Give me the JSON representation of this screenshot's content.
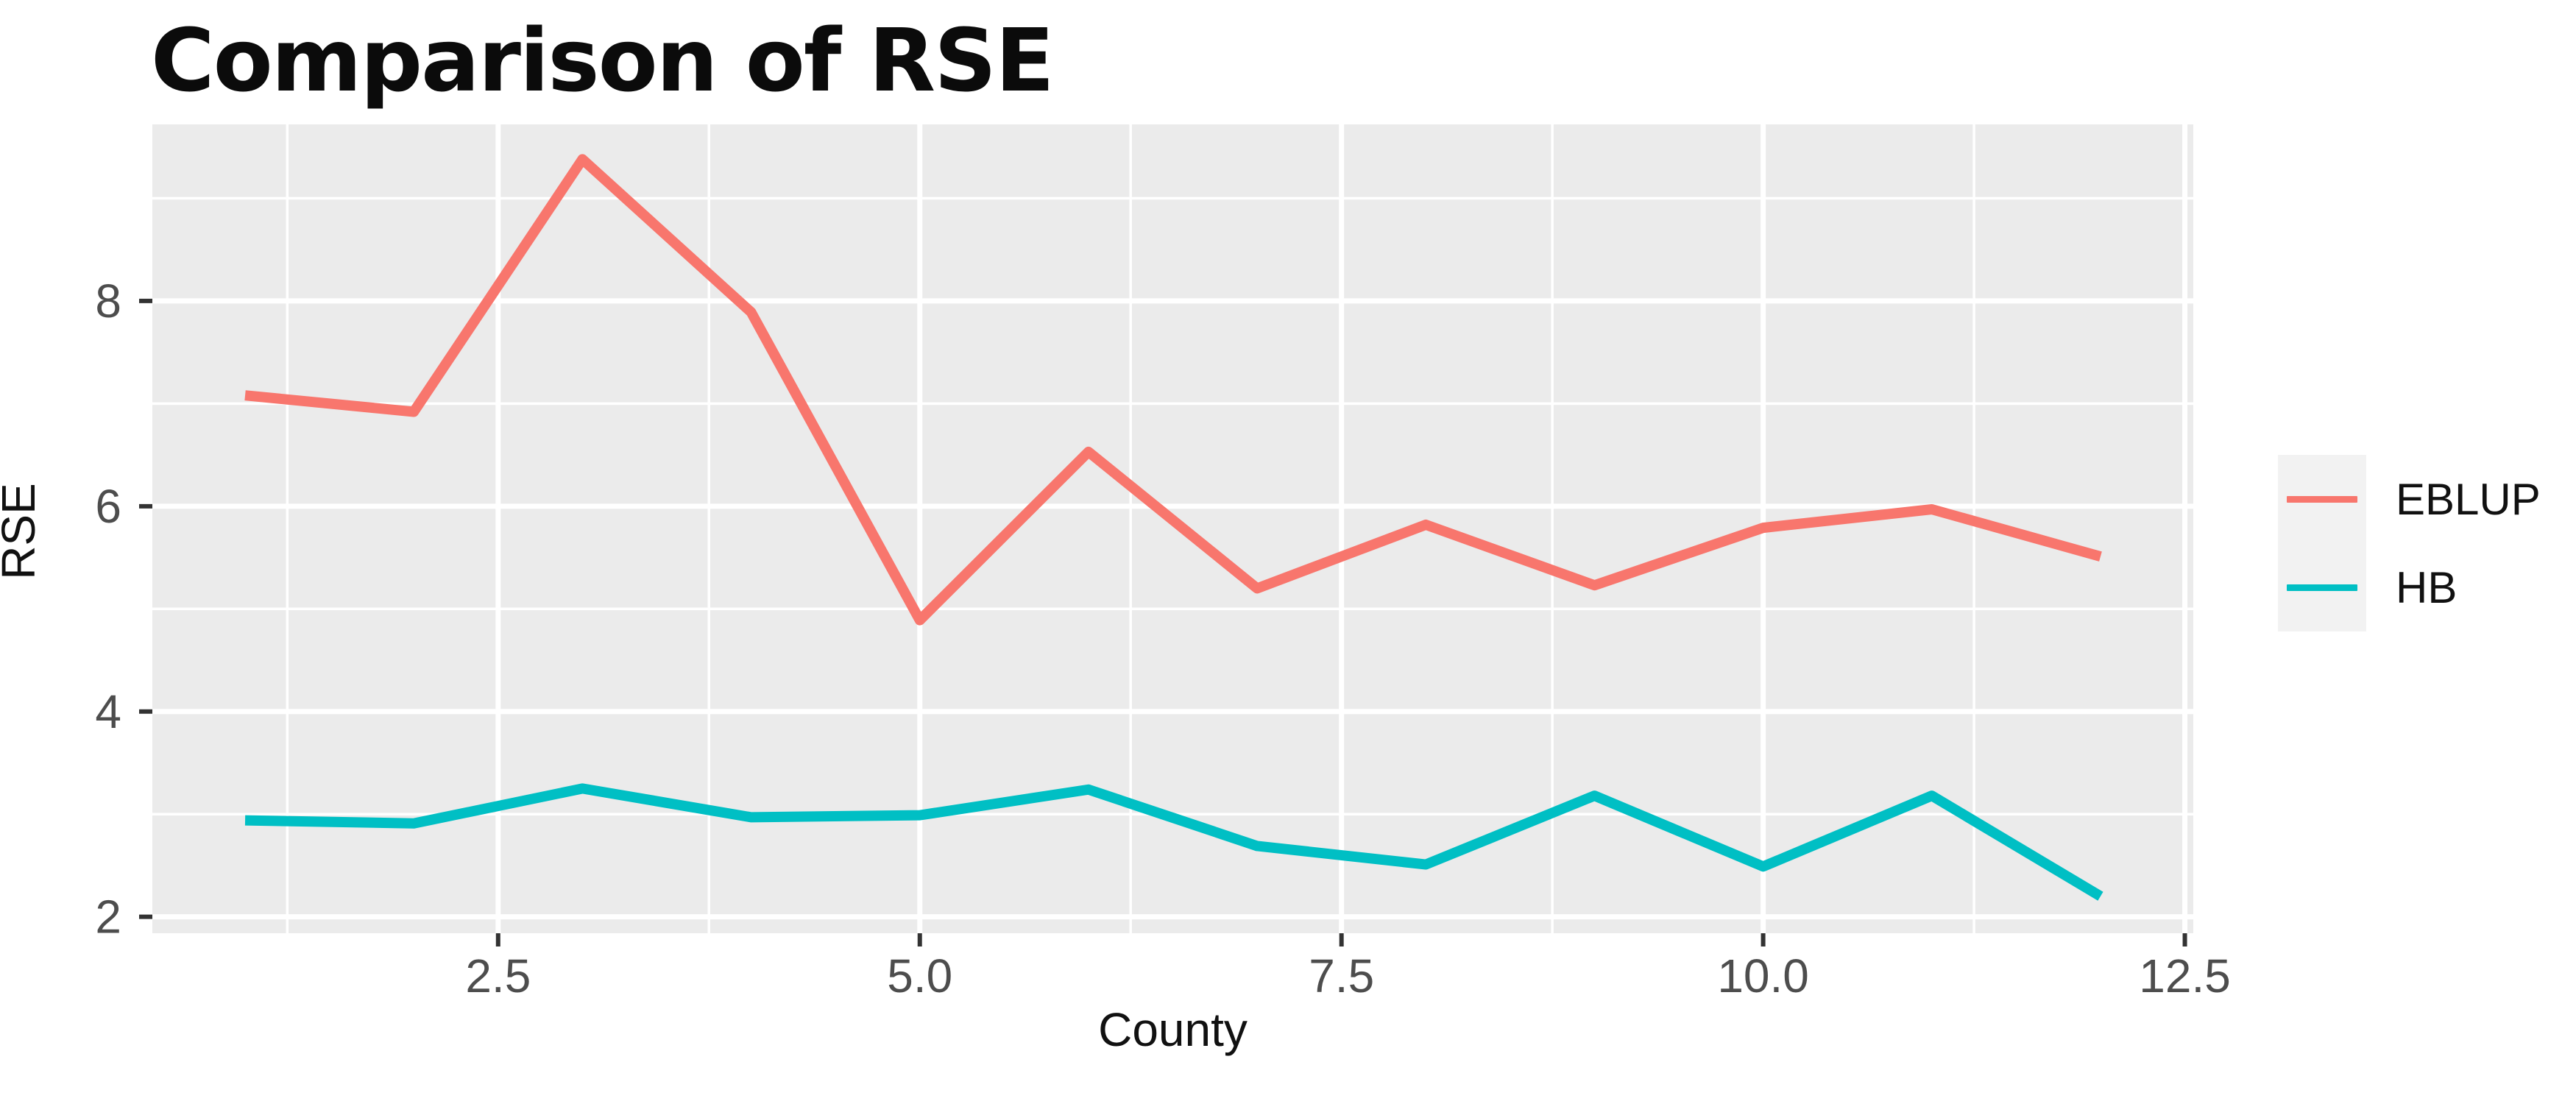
{
  "title": "Comparison of RSE",
  "chart_data": {
    "type": "line",
    "title": "Comparison of RSE",
    "xlabel": "County",
    "ylabel": "RSE",
    "x": [
      1,
      2,
      3,
      4,
      5,
      6,
      7,
      8,
      9,
      10,
      11,
      12
    ],
    "series": [
      {
        "name": "EBLUP",
        "color": "#F8766D",
        "values": [
          7.08,
          6.92,
          9.38,
          7.89,
          4.89,
          6.53,
          5.2,
          5.82,
          5.23,
          5.79,
          5.97,
          5.51
        ]
      },
      {
        "name": "HB",
        "color": "#00BFC4",
        "values": [
          2.94,
          2.91,
          3.25,
          2.97,
          2.99,
          3.24,
          2.69,
          2.51,
          3.18,
          2.49,
          3.18,
          2.2
        ]
      }
    ],
    "xlim": [
      0.45,
      12.55
    ],
    "ylim": [
      1.84,
      9.72
    ],
    "x_ticks": [
      2.5,
      5.0,
      7.5,
      10.0,
      12.5
    ],
    "x_tick_labels": [
      "2.5",
      "5.0",
      "7.5",
      "10.0",
      "12.5"
    ],
    "y_ticks": [
      2,
      4,
      6,
      8
    ],
    "y_tick_labels": [
      "2",
      "4",
      "6",
      "8"
    ],
    "x_minor": [
      1.25,
      3.75,
      6.25,
      8.75,
      11.25
    ],
    "y_minor": [
      3,
      5,
      7,
      9
    ],
    "grid": true,
    "legend_position": "right",
    "style": {
      "panel_bg": "#EBEBEB",
      "grid_color": "#FFFFFF",
      "tick_color": "#333333",
      "tick_label_color": "#4D4D4D",
      "axis_title_color": "#111111",
      "legend_key_bg": "#F2F2F2",
      "title_color": "#0B0B0B"
    }
  }
}
